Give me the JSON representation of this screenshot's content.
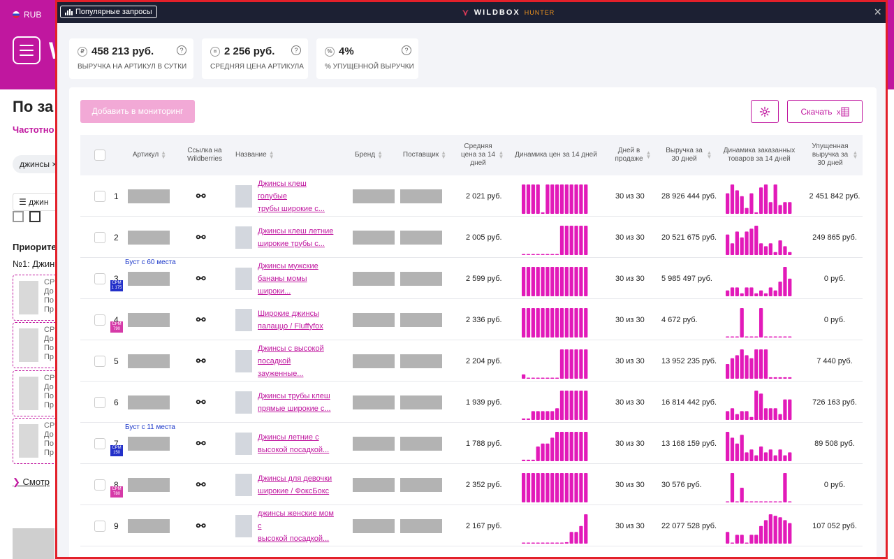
{
  "background": {
    "currency": "RUB",
    "heading": "По за",
    "subheading": "Частотно",
    "chip": "джинсы",
    "list_label": "джин",
    "priority_label": "Приорите",
    "priority_item": "№1: Джин",
    "card_lines": [
      "СР",
      "До",
      "По",
      "Пр"
    ],
    "more_link": "Смотр"
  },
  "modal": {
    "popular_label": "Популярные запросы",
    "logo_text": "WILDBOX",
    "logo_sub": "HUNTER",
    "close_label": "×"
  },
  "stats": [
    {
      "value": "458 213  руб.",
      "label": "ВЫРУЧКА НА АРТИКУЛ В СУТКИ",
      "icon": "revenue-icon"
    },
    {
      "value": "2 256  руб.",
      "label": "СРЕДНЯЯ ЦЕНА АРТИКУЛА",
      "icon": "price-icon"
    },
    {
      "value": "4%",
      "label": "% УПУЩЕННОЙ ВЫРУЧКИ",
      "icon": "percent-icon"
    }
  ],
  "toolbar": {
    "add_label": "Добавить в мониторинг",
    "download_label": "Скачать"
  },
  "columns": {
    "article": "Артикул",
    "link": "Ссылка на Wildberries",
    "name": "Название",
    "brand": "Бренд",
    "supplier": "Поставщик",
    "avg_price": "Средняя цена за 14 дней",
    "price_dyn": "Динамика цен за 14 дней",
    "days": "Дней в продаже",
    "revenue": "Выручка за 30 дней",
    "orders_dyn": "Динамика заказанных товаров за 14 дней",
    "lost": "Упущенная выручка за 30 дней"
  },
  "rows": [
    {
      "num": "1",
      "boost": "",
      "cpm": "",
      "cpm_color": "",
      "name1": "Джинсы клеш голубые",
      "name2": "трубы широкие с...",
      "price": "2 021 руб.",
      "days": "30 из 30",
      "revenue": "28 926 444 руб.",
      "lost": "2 451 842 руб.",
      "price_dyn": [
        1,
        1,
        1,
        1,
        0.05,
        1,
        1,
        1,
        1,
        1,
        1,
        1,
        1,
        1
      ],
      "orders_dyn": [
        0.7,
        1,
        0.8,
        0.6,
        0.2,
        0.7,
        0.05,
        0.9,
        1,
        0.4,
        1,
        0.3,
        0.4,
        0.4
      ]
    },
    {
      "num": "2",
      "boost": "",
      "cpm": "",
      "cpm_color": "",
      "name1": "Джинсы клеш летние",
      "name2": "широкие трубы с...",
      "price": "2 005 руб.",
      "days": "30 из 30",
      "revenue": "20 521 675 руб.",
      "lost": "249 865 руб.",
      "price_dyn": [
        0.03,
        0.03,
        0.03,
        0.03,
        0.03,
        0.03,
        0.03,
        0.03,
        1,
        1,
        1,
        1,
        1,
        1
      ],
      "orders_dyn": [
        0.7,
        0.4,
        0.8,
        0.6,
        0.8,
        0.9,
        1,
        0.4,
        0.3,
        0.4,
        0.1,
        0.5,
        0.3,
        0.1
      ]
    },
    {
      "num": "3",
      "boost": "Буст с 60 места",
      "cpm": "CPM 1 175",
      "cpm_color": "blue",
      "name1": "Джинсы мужские",
      "name2": "бананы момы широки...",
      "price": "2 599 руб.",
      "days": "30 из 30",
      "revenue": "5 985 497 руб.",
      "lost": "0 руб.",
      "price_dyn": [
        1,
        1,
        1,
        1,
        1,
        1,
        1,
        1,
        1,
        1,
        1,
        1,
        1,
        1
      ],
      "orders_dyn": [
        0.2,
        0.3,
        0.3,
        0.1,
        0.3,
        0.3,
        0.1,
        0.2,
        0.1,
        0.3,
        0.2,
        0.5,
        1,
        0.6
      ]
    },
    {
      "num": "4",
      "boost": "",
      "cpm": "CPM 790",
      "cpm_color": "pink",
      "name1": "Широкие джинсы",
      "name2": "палаццо / Fluffyfox",
      "price": "2 336 руб.",
      "days": "30 из 30",
      "revenue": "4 672 руб.",
      "lost": "0 руб.",
      "price_dyn": [
        1,
        1,
        1,
        1,
        1,
        1,
        1,
        1,
        1,
        1,
        1,
        1,
        1,
        1
      ],
      "orders_dyn": [
        0.03,
        0.03,
        0.03,
        1,
        0.03,
        0.03,
        0.03,
        1,
        0.03,
        0.03,
        0.03,
        0.03,
        0.03,
        0.03
      ]
    },
    {
      "num": "5",
      "boost": "",
      "cpm": "",
      "cpm_color": "",
      "name1": "Джинсы с высокой",
      "name2": "посадкой зауженные...",
      "price": "2 204 руб.",
      "days": "30 из 30",
      "revenue": "13 952 235 руб.",
      "lost": "7 440 руб.",
      "price_dyn": [
        0.15,
        0.03,
        0.03,
        0.03,
        0.03,
        0.03,
        0.03,
        0.03,
        1,
        1,
        1,
        1,
        1,
        1
      ],
      "orders_dyn": [
        0.5,
        0.7,
        0.8,
        1,
        0.8,
        0.7,
        1,
        1,
        1,
        0.05,
        0.05,
        0.05,
        0.05,
        0.05
      ]
    },
    {
      "num": "6",
      "boost": "",
      "cpm": "",
      "cpm_color": "",
      "name1": "Джинсы трубы клеш",
      "name2": "прямые широкие с...",
      "price": "1 939 руб.",
      "days": "30 из 30",
      "revenue": "16 814 442 руб.",
      "lost": "726 163 руб.",
      "price_dyn": [
        0.05,
        0.05,
        0.3,
        0.3,
        0.3,
        0.3,
        0.3,
        0.4,
        1,
        1,
        1,
        1,
        1,
        1
      ],
      "orders_dyn": [
        0.3,
        0.4,
        0.2,
        0.3,
        0.3,
        0.1,
        1,
        0.9,
        0.4,
        0.4,
        0.4,
        0.2,
        0.7,
        0.7
      ]
    },
    {
      "num": "7",
      "boost": "Буст с 11 места",
      "cpm": "CPM 150",
      "cpm_color": "blue",
      "name1": "Джинсы летние с",
      "name2": "высокой посадкой...",
      "price": "1 788 руб.",
      "days": "30 из 30",
      "revenue": "13 168 159 руб.",
      "lost": "89 508 руб.",
      "price_dyn": [
        0.05,
        0.05,
        0.05,
        0.5,
        0.6,
        0.6,
        0.8,
        1,
        1,
        1,
        1,
        1,
        1,
        1
      ],
      "orders_dyn": [
        1,
        0.8,
        0.6,
        0.9,
        0.3,
        0.4,
        0.2,
        0.5,
        0.3,
        0.4,
        0.2,
        0.4,
        0.2,
        0.3
      ]
    },
    {
      "num": "8",
      "boost": "",
      "cpm": "CPM 780",
      "cpm_color": "pink",
      "name1": "Джинсы для девочки",
      "name2": "широкие / ФоксБокс",
      "price": "2 352 руб.",
      "days": "30 из 30",
      "revenue": "30 576 руб.",
      "lost": "0 руб.",
      "price_dyn": [
        1,
        1,
        1,
        1,
        1,
        1,
        1,
        1,
        1,
        1,
        1,
        1,
        1,
        1
      ],
      "orders_dyn": [
        0.03,
        1,
        0.03,
        0.5,
        0.03,
        0.03,
        0.03,
        0.03,
        0.03,
        0.03,
        0.03,
        0.03,
        1,
        0.03
      ]
    },
    {
      "num": "9",
      "boost": "",
      "cpm": "",
      "cpm_color": "",
      "name1": "джинсы женские мом с",
      "name2": "высокой посадкой...",
      "price": "2 167 руб.",
      "days": "30 из 30",
      "revenue": "22 077 528 руб.",
      "lost": "107 052 руб.",
      "price_dyn": [
        0.03,
        0.03,
        0.03,
        0.03,
        0.03,
        0.03,
        0.03,
        0.03,
        0.03,
        0.05,
        0.4,
        0.4,
        0.6,
        1
      ],
      "orders_dyn": [
        0.4,
        0.03,
        0.3,
        0.3,
        0.03,
        0.3,
        0.3,
        0.6,
        0.8,
        1,
        0.95,
        0.9,
        0.8,
        0.7
      ]
    }
  ],
  "colors": {
    "accent": "#c0179f",
    "bar": "#e21ab9",
    "header": "#1c2033",
    "frame": "#e3202a"
  }
}
